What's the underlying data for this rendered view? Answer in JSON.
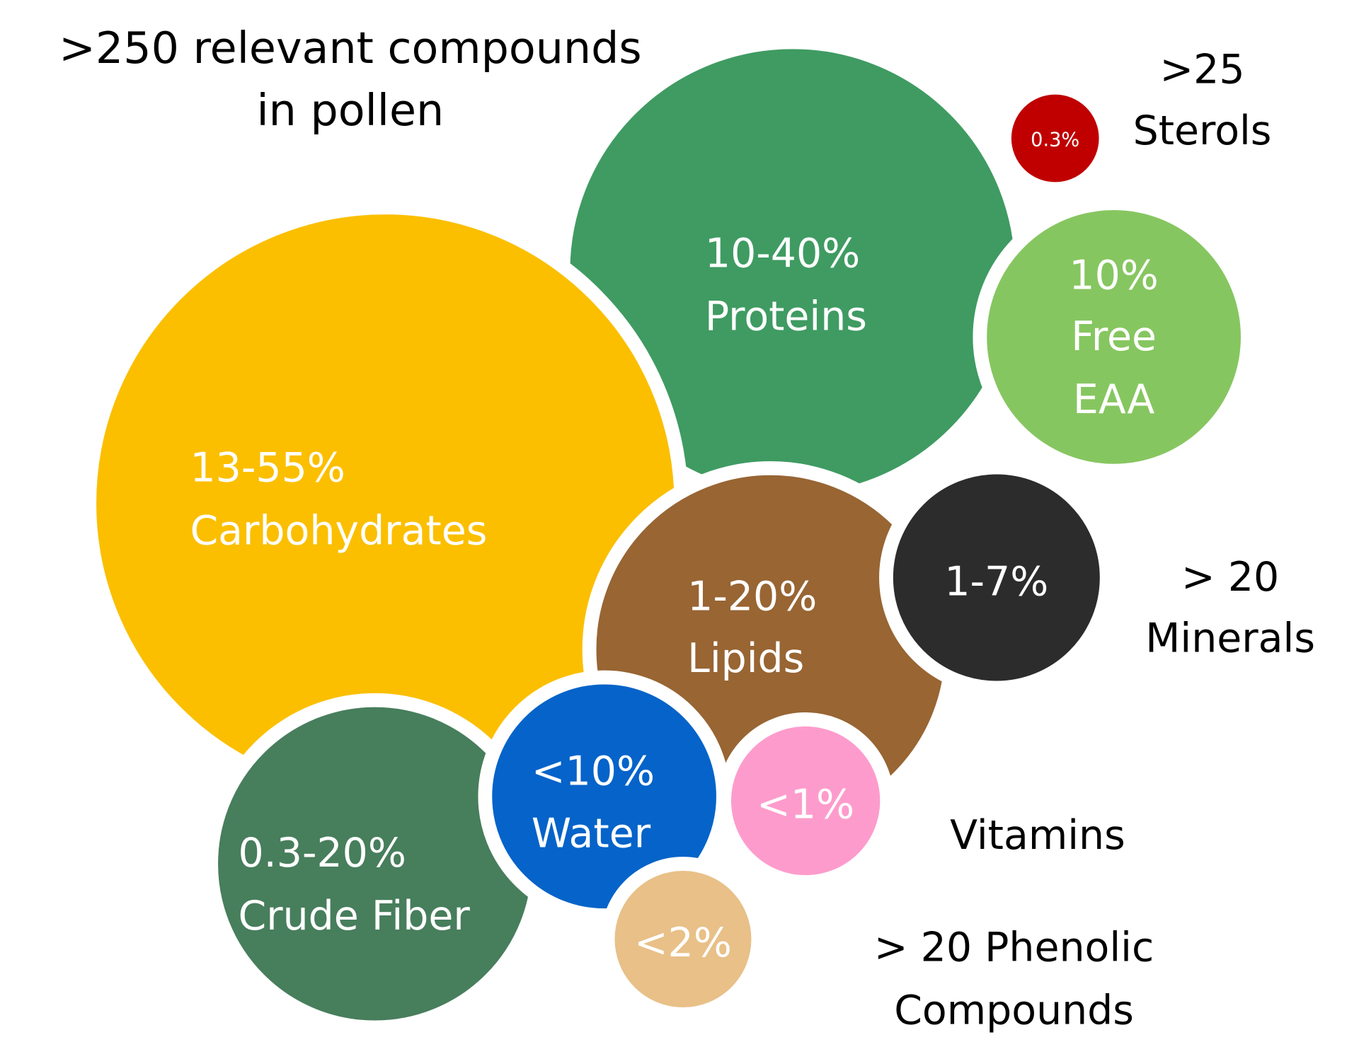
{
  "title": [
    "&gt;250 relevant compounds",
    "in pollen"
  ],
  "nodes": [
    {
      "name": "proteins",
      "color": "#3f9b62",
      "label": [
        "10-40%",
        "Proteins"
      ]
    },
    {
      "name": "carbohydrates",
      "color": "#fbbf00",
      "label": [
        "13-55%",
        "Carbohydrates"
      ]
    },
    {
      "name": "lipids",
      "color": "#986533",
      "label": [
        "1-20%",
        "Lipids"
      ]
    },
    {
      "name": "free-eaa",
      "color": "#86c660",
      "label": [
        "10%",
        "Free",
        "EAA"
      ]
    },
    {
      "name": "sterols",
      "color": "#c00000",
      "label": [
        "0.3%"
      ]
    },
    {
      "name": "minerals",
      "color": "#2b2c2b",
      "label": [
        "1-7%"
      ]
    },
    {
      "name": "crude-fiber",
      "color": "#477e5c",
      "label": [
        "0.3-20%",
        "Crude Fiber"
      ]
    },
    {
      "name": "water",
      "color": "#0563c9",
      "label": [
        "&lt;10%",
        "Water"
      ]
    },
    {
      "name": "vitamins",
      "color": "#fd9ccc",
      "label": [
        "&lt;1%"
      ]
    },
    {
      "name": "phenolics",
      "color": "#e8c088",
      "label": [
        "&lt;2%"
      ]
    }
  ],
  "outside_labels": [
    {
      "lines": [
        "&gt;25",
        "Sterols"
      ]
    },
    {
      "lines": [
        "&gt; 20",
        "Minerals"
      ]
    },
    {
      "lines": [
        "Vitamins"
      ]
    },
    {
      "lines": [
        "&gt; 20 Phenolic",
        "Compounds"
      ]
    }
  ]
}
